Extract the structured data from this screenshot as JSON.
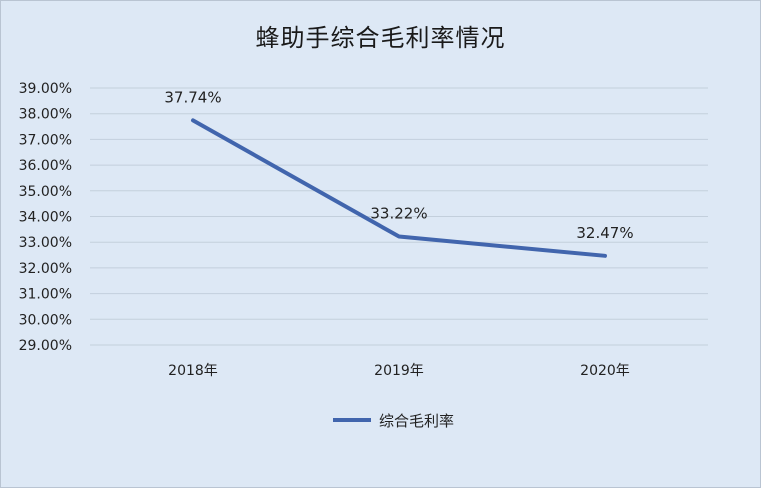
{
  "chart_data": {
    "type": "line",
    "title": "蜂助手综合毛利率情况",
    "categories": [
      "2018年",
      "2019年",
      "2020年"
    ],
    "series": [
      {
        "name": "综合毛利率",
        "values": [
          37.74,
          33.22,
          32.47
        ],
        "labels": [
          "37.74%",
          "33.22%",
          "32.47%"
        ],
        "color": "#4165ad"
      }
    ],
    "ylim": [
      29,
      39
    ],
    "yticks": [
      "39.00%",
      "38.00%",
      "37.00%",
      "36.00%",
      "35.00%",
      "34.00%",
      "33.00%",
      "32.00%",
      "31.00%",
      "30.00%",
      "29.00%"
    ],
    "grid": true,
    "legend": "bottom"
  }
}
